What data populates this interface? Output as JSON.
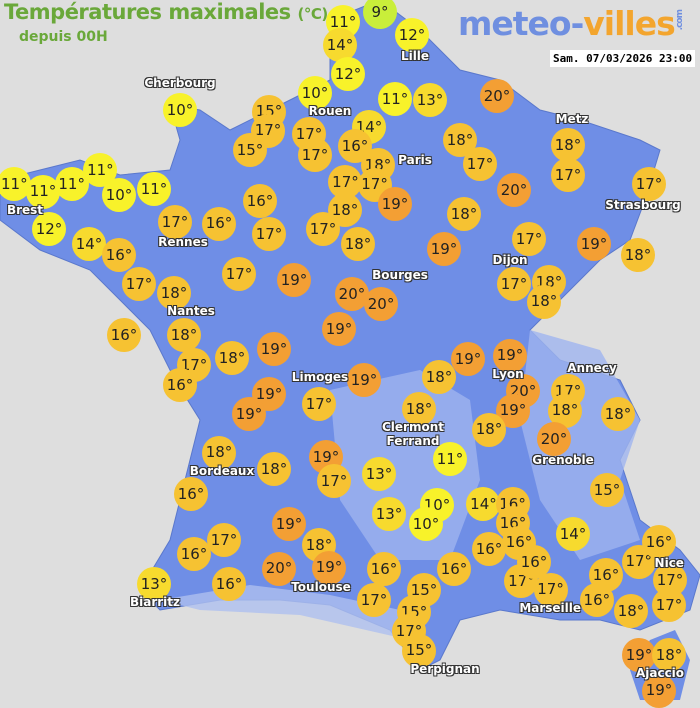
{
  "header": {
    "title": "Températures maximales",
    "unit": "(°C)",
    "subtitle": "depuis 00H",
    "logo": {
      "part1": "meteo-",
      "part2": "villes",
      "suffix": ".com"
    },
    "datetime": "Sam. 07/03/2026 23:00"
  },
  "palette": {
    "land": "#6f8ee6",
    "relief": "#9fb4ef",
    "sea": "#dedede",
    "t9": "#c9ee3a",
    "t10_12": "#f8f22a",
    "t13_14": "#f7da2e",
    "t15_18": "#f6c232",
    "t19_20": "#f39f34"
  },
  "cities": [
    "Cherbourg",
    "Lille",
    "Rouen",
    "Paris",
    "Metz",
    "Strasbourg",
    "Brest",
    "Rennes",
    "Nantes",
    "Dijon",
    "Bourges",
    "Limoges",
    "Lyon",
    "Annecy",
    "Clermont Ferrand",
    "Grenoble",
    "Bordeaux",
    "Toulouse",
    "Biarritz",
    "Marseille",
    "Nice",
    "Perpignan",
    "Ajaccio"
  ],
  "temperatures": [
    9,
    11,
    14,
    12,
    12,
    10,
    10,
    15,
    17,
    17,
    17,
    15,
    11,
    13,
    20,
    14,
    16,
    18,
    17,
    17,
    19,
    18,
    18,
    17,
    20,
    18,
    18,
    17,
    17,
    11,
    11,
    11,
    11,
    10,
    11,
    12,
    17,
    16,
    16,
    17,
    17,
    14,
    16,
    18,
    19,
    17,
    19,
    18,
    17,
    18,
    17,
    19,
    20,
    20,
    17,
    18,
    18,
    16,
    18,
    17,
    16,
    18,
    19,
    19,
    19,
    19,
    20,
    19,
    18,
    19,
    17,
    18,
    18,
    19,
    19,
    17,
    18,
    18,
    20,
    18,
    18,
    19,
    17,
    13,
    11,
    16,
    10,
    10,
    13,
    14,
    16,
    16,
    15,
    19,
    17,
    16,
    18,
    19,
    20,
    16,
    13,
    14,
    16,
    16,
    17,
    16,
    17,
    16,
    16,
    15,
    17,
    15,
    17,
    15,
    17,
    16,
    17,
    17,
    16,
    16,
    18,
    19,
    18,
    19
  ]
}
